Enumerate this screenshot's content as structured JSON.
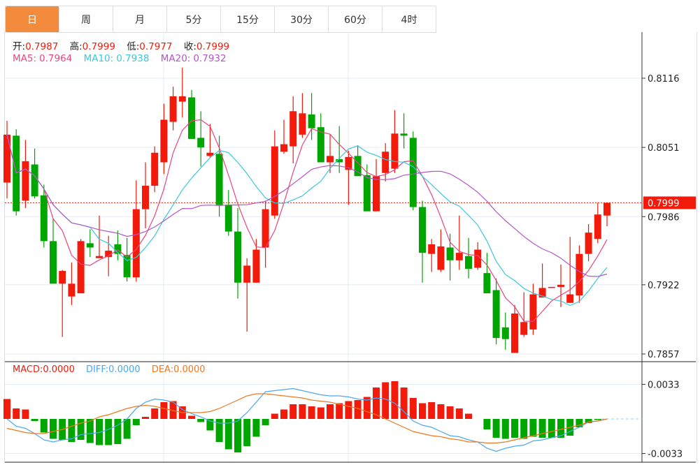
{
  "tabs": [
    {
      "label": "日",
      "active": true
    },
    {
      "label": "周",
      "active": false
    },
    {
      "label": "月",
      "active": false
    },
    {
      "label": "5分",
      "active": false
    },
    {
      "label": "15分",
      "active": false
    },
    {
      "label": "30分",
      "active": false
    },
    {
      "label": "60分",
      "active": false
    },
    {
      "label": "4时",
      "active": false
    }
  ],
  "ohlc": {
    "open_label": "开:",
    "open": "0.7987",
    "high_label": "高:",
    "high": "0.7999",
    "low_label": "低:",
    "low": "0.7977",
    "close_label": "收:",
    "close": "0.7999"
  },
  "ma": {
    "ma5_label": "MA5:",
    "ma5": "0.7964",
    "ma10_label": "MA10:",
    "ma10": "0.7938",
    "ma20_label": "MA20:",
    "ma20": "0.7932"
  },
  "macd_info": {
    "macd_label": "MACD:",
    "macd": "0.0000",
    "diff_label": "DIFF:",
    "diff": "0.0000",
    "dea_label": "DEA:",
    "dea": "0.0000"
  },
  "colors": {
    "up": "#F21A0A",
    "down": "#00A600",
    "active_tab": "#F28C3C",
    "ma5": "#E9457F",
    "ma10": "#3CC8DC",
    "ma20": "#B455C8",
    "diff": "#4AA8F0",
    "dea": "#F07820"
  },
  "chart_data": [
    {
      "type": "candlestick",
      "title": "",
      "y_ticks": [
        "0.8116",
        "0.8051",
        "0.7986",
        "0.7922",
        "0.7857"
      ],
      "ylim": [
        0.7857,
        0.8116
      ],
      "last_price_label": "0.7999",
      "ohlc": [
        [
          0.8018,
          0.8076,
          0.8003,
          0.8063
        ],
        [
          0.8062,
          0.8068,
          0.7987,
          0.7991
        ],
        [
          0.8001,
          0.8058,
          0.7994,
          0.8038
        ],
        [
          0.8035,
          0.805,
          0.8003,
          0.8005
        ],
        [
          0.8006,
          0.8016,
          0.7957,
          0.7963
        ],
        [
          0.7963,
          0.7984,
          0.7923,
          0.7923
        ],
        [
          0.7923,
          0.7936,
          0.7873,
          0.7935
        ],
        [
          0.7911,
          0.7943,
          0.7903,
          0.7923
        ],
        [
          0.7914,
          0.7965,
          0.7914,
          0.7963
        ],
        [
          0.7961,
          0.7974,
          0.7948,
          0.7957
        ],
        [
          0.7947,
          0.7987,
          0.7947,
          0.7949
        ],
        [
          0.7948,
          0.7968,
          0.793,
          0.7954
        ],
        [
          0.796,
          0.7973,
          0.7945,
          0.7951
        ],
        [
          0.795,
          0.7966,
          0.7925,
          0.7929
        ],
        [
          0.7929,
          0.802,
          0.7925,
          0.7993
        ],
        [
          0.7993,
          0.8037,
          0.7975,
          0.8015
        ],
        [
          0.8015,
          0.8052,
          0.8009,
          0.8046
        ],
        [
          0.8037,
          0.8092,
          0.8026,
          0.8077
        ],
        [
          0.8075,
          0.8108,
          0.8067,
          0.8099
        ],
        [
          0.8094,
          0.8126,
          0.8079,
          0.8099
        ],
        [
          0.8098,
          0.8105,
          0.8059,
          0.8059
        ],
        [
          0.806,
          0.8085,
          0.8033,
          0.8051
        ],
        [
          0.8043,
          0.8073,
          0.8041,
          0.8046
        ],
        [
          0.8045,
          0.8062,
          0.7986,
          0.7997
        ],
        [
          0.7997,
          0.8011,
          0.7968,
          0.7972
        ],
        [
          0.7972,
          0.7994,
          0.7909,
          0.7924
        ],
        [
          0.7924,
          0.7947,
          0.7878,
          0.794
        ],
        [
          0.7924,
          0.7965,
          0.7924,
          0.7955
        ],
        [
          0.7957,
          0.8001,
          0.7938,
          0.7993
        ],
        [
          0.7987,
          0.8067,
          0.7984,
          0.8052
        ],
        [
          0.8047,
          0.8077,
          0.8045,
          0.8054
        ],
        [
          0.8052,
          0.8099,
          0.8036,
          0.8085
        ],
        [
          0.8063,
          0.8102,
          0.806,
          0.8083
        ],
        [
          0.8082,
          0.8102,
          0.8058,
          0.8069
        ],
        [
          0.807,
          0.8083,
          0.8037,
          0.8037
        ],
        [
          0.8037,
          0.8063,
          0.8027,
          0.8043
        ],
        [
          0.804,
          0.8071,
          0.8027,
          0.8037
        ],
        [
          0.803,
          0.8048,
          0.7997,
          0.8042
        ],
        [
          0.8043,
          0.8053,
          0.8024,
          0.8024
        ],
        [
          0.8025,
          0.8035,
          0.7991,
          0.7991
        ],
        [
          0.7991,
          0.804,
          0.7991,
          0.8024
        ],
        [
          0.8027,
          0.8055,
          0.8019,
          0.8047
        ],
        [
          0.8031,
          0.8086,
          0.8027,
          0.8064
        ],
        [
          0.8064,
          0.8083,
          0.805,
          0.8062
        ],
        [
          0.806,
          0.8066,
          0.7992,
          0.7995
        ],
        [
          0.7995,
          0.8001,
          0.7924,
          0.7952
        ],
        [
          0.7951,
          0.7965,
          0.7934,
          0.796
        ],
        [
          0.7936,
          0.7974,
          0.7934,
          0.7958
        ],
        [
          0.7957,
          0.797,
          0.7926,
          0.7945
        ],
        [
          0.7945,
          0.7987,
          0.7936,
          0.7952
        ],
        [
          0.7949,
          0.7966,
          0.7928,
          0.7937
        ],
        [
          0.7938,
          0.7962,
          0.7936,
          0.7955
        ],
        [
          0.7933,
          0.7952,
          0.7914,
          0.7914
        ],
        [
          0.7917,
          0.7928,
          0.7866,
          0.7872
        ],
        [
          0.7882,
          0.7896,
          0.7861,
          0.7871
        ],
        [
          0.7858,
          0.7903,
          0.7858,
          0.7895
        ],
        [
          0.7875,
          0.7915,
          0.7873,
          0.7887
        ],
        [
          0.788,
          0.7923,
          0.7875,
          0.7913
        ],
        [
          0.791,
          0.7942,
          0.791,
          0.7919
        ],
        [
          0.7919,
          0.792,
          0.7919,
          0.792
        ],
        [
          0.792,
          0.7941,
          0.7901,
          0.7922
        ],
        [
          0.7905,
          0.7967,
          0.7905,
          0.7913
        ],
        [
          0.7912,
          0.7959,
          0.7905,
          0.7951
        ],
        [
          0.7951,
          0.7979,
          0.7944,
          0.7971
        ],
        [
          0.7965,
          0.7999,
          0.7961,
          0.7988
        ],
        [
          0.7987,
          0.7999,
          0.7977,
          0.7999
        ]
      ],
      "ohlc_order": [
        "open",
        "high",
        "low",
        "close"
      ],
      "series": [
        {
          "name": "MA5",
          "period": 5
        },
        {
          "name": "MA10",
          "period": 10
        },
        {
          "name": "MA20",
          "period": 20
        }
      ]
    },
    {
      "type": "bar",
      "title": "MACD",
      "y_ticks": [
        "0.0033",
        "-0.0033"
      ],
      "ylim": [
        -0.0033,
        0.0033
      ],
      "macd": [
        0.0019,
        0.001,
        0.0009,
        -0.0002,
        -0.0013,
        -0.0019,
        -0.002,
        -0.0022,
        -0.002,
        -0.0023,
        -0.0025,
        -0.0025,
        -0.0024,
        -0.0019,
        -0.0006,
        0.0002,
        0.001,
        0.0016,
        0.0017,
        0.0012,
        0.0003,
        -0.0003,
        -0.0011,
        -0.0022,
        -0.0029,
        -0.0032,
        -0.0026,
        -0.0017,
        -0.0006,
        0.0005,
        0.0009,
        0.0014,
        0.0014,
        0.0012,
        0.0011,
        0.0014,
        0.0015,
        0.0017,
        0.0018,
        0.0021,
        0.003,
        0.0035,
        0.0036,
        0.003,
        0.002,
        0.0015,
        0.0016,
        0.0014,
        0.0012,
        0.001,
        0.0005,
        0.0,
        -0.001,
        -0.0018,
        -0.0019,
        -0.0018,
        -0.0019,
        -0.0017,
        -0.0018,
        -0.0018,
        -0.0018,
        -0.0016,
        -0.0008,
        -0.0004,
        -0.0001,
        0.0
      ],
      "series": [
        {
          "name": "DIFF",
          "values": [
            0,
            -0.0007,
            -0.0009,
            -0.0014,
            -0.002,
            -0.0022,
            -0.002,
            -0.0019,
            -0.0015,
            -0.0014,
            -0.0013,
            -0.001,
            -0.0006,
            0,
            0.001,
            0.0016,
            0.0019,
            0.0018,
            0.0016,
            0.0009,
            0.0005,
            0.0002,
            -0.0002,
            -0.0004,
            -0.0004,
            -0.0002,
            0.0006,
            0.0016,
            0.0026,
            0.0027,
            0.0028,
            0.0029,
            0.0027,
            0.0025,
            0.0023,
            0.0022,
            0.0022,
            0.0021,
            0.0019,
            0.0018,
            0.002,
            0.0019,
            0.0015,
            0.0007,
            -0.0002,
            -0.0006,
            -0.0008,
            -0.0012,
            -0.0016,
            -0.0017,
            -0.002,
            -0.0022,
            -0.0028,
            -0.0031,
            -0.0028,
            -0.0026,
            -0.0025,
            -0.0021,
            -0.002,
            -0.0018,
            -0.0016,
            -0.0012,
            -0.0008,
            -0.0003,
            -0.0002,
            0
          ]
        },
        {
          "name": "DEA",
          "values": [
            -0.0009,
            -0.0011,
            -0.0013,
            -0.0014,
            -0.0014,
            -0.0012,
            -0.001,
            -0.0007,
            -0.0004,
            -0.0002,
            0.0002,
            0.0004,
            0.0007,
            0.001,
            0.0012,
            0.0013,
            0.0012,
            0.001,
            0.0008,
            0.0006,
            0.0006,
            0.0006,
            0.0007,
            0.001,
            0.0014,
            0.0018,
            0.0022,
            0.0024,
            0.0024,
            0.0023,
            0.0022,
            0.0021,
            0.002,
            0.0018,
            0.0017,
            0.0016,
            0.0014,
            0.0012,
            0.001,
            0.0007,
            0.0004,
            0,
            -0.0004,
            -0.0008,
            -0.0012,
            -0.0014,
            -0.0016,
            -0.0017,
            -0.0019,
            -0.002,
            -0.0022,
            -0.0022,
            -0.0023,
            -0.0023,
            -0.0022,
            -0.002,
            -0.0018,
            -0.0016,
            -0.0014,
            -0.0012,
            -0.001,
            -0.0008,
            -0.0006,
            -0.0003,
            -0.0002,
            0
          ]
        }
      ]
    }
  ]
}
